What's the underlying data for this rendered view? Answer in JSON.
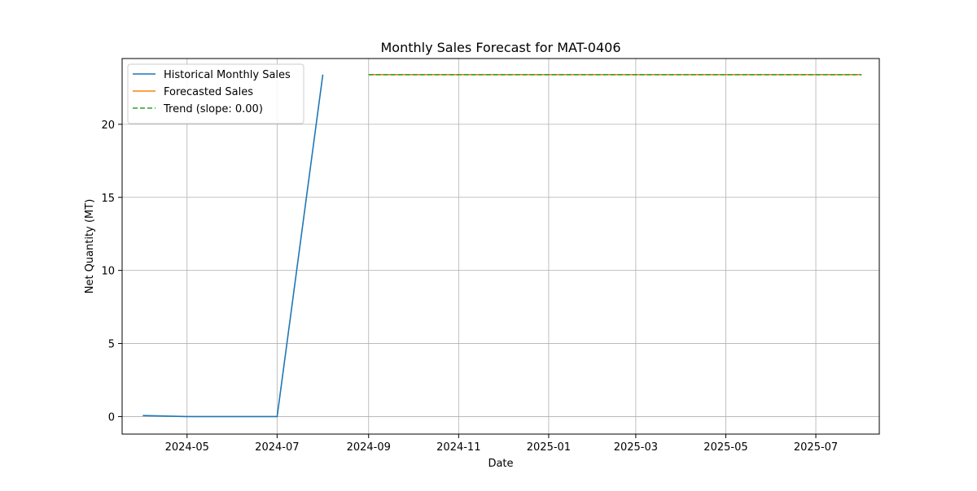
{
  "chart_data": {
    "type": "line",
    "title": "Monthly Sales Forecast for MAT-0406",
    "xlabel": "Date",
    "ylabel": "Net Quantity (MT)",
    "xlim": [
      "2024-03-18",
      "2025-08-13"
    ],
    "ylim": [
      -1.2,
      24.5
    ],
    "xticks": [
      "2024-05",
      "2024-07",
      "2024-09",
      "2024-11",
      "2025-01",
      "2025-03",
      "2025-05",
      "2025-07"
    ],
    "tick_dates": [
      "2024-05-01",
      "2024-07-01",
      "2024-09-01",
      "2024-11-01",
      "2025-01-01",
      "2025-03-01",
      "2025-05-01",
      "2025-07-01"
    ],
    "yticks": [
      0,
      5,
      10,
      15,
      20
    ],
    "grid": true,
    "legend_position": "top-left",
    "series": [
      {
        "name": "Historical Monthly Sales",
        "color": "#1f77b4",
        "dash": "solid",
        "points": [
          {
            "x": "2024-04-01",
            "y": 0.07
          },
          {
            "x": "2024-05-01",
            "y": 0.0
          },
          {
            "x": "2024-06-01",
            "y": 0.0
          },
          {
            "x": "2024-07-01",
            "y": 0.0
          },
          {
            "x": "2024-08-01",
            "y": 23.4
          }
        ]
      },
      {
        "name": "Forecasted Sales",
        "color": "#ff7f0e",
        "dash": "solid",
        "points": [
          {
            "x": "2024-09-01",
            "y": 23.4
          },
          {
            "x": "2025-08-01",
            "y": 23.4
          }
        ]
      },
      {
        "name": "Trend (slope: 0.00)",
        "color": "#2ca02c",
        "dash": "dashed",
        "points": [
          {
            "x": "2024-09-01",
            "y": 23.4
          },
          {
            "x": "2025-08-01",
            "y": 23.4
          }
        ]
      }
    ]
  }
}
